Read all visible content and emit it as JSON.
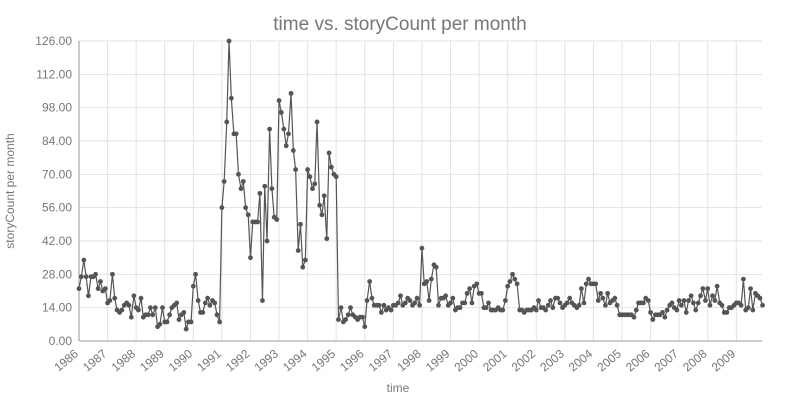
{
  "chart_data": {
    "type": "line",
    "title": "time vs. storyCount per month",
    "xlabel": "time",
    "ylabel": "storyCount per month",
    "ylim": [
      0,
      126
    ],
    "yticks": [
      "0.00",
      "14.00",
      "28.00",
      "42.00",
      "56.00",
      "70.00",
      "84.00",
      "98.00",
      "112.00",
      "126.00"
    ],
    "xlim": [
      1986.0,
      2009.9
    ],
    "xticks": [
      "1986",
      "1987",
      "1988",
      "1989",
      "1990",
      "1991",
      "1992",
      "1993",
      "1994",
      "1995",
      "1996",
      "1997",
      "1998",
      "1999",
      "2000",
      "2001",
      "2002",
      "2003",
      "2004",
      "2005",
      "2006",
      "2007",
      "2008",
      "2009"
    ],
    "grid": true,
    "color": "#555555",
    "series": [
      {
        "name": "storyCount per month",
        "x": [
          1986.0,
          1986.08,
          1986.17,
          1986.25,
          1986.33,
          1986.42,
          1986.5,
          1986.58,
          1986.67,
          1986.75,
          1986.83,
          1986.92,
          1987.0,
          1987.08,
          1987.17,
          1987.25,
          1987.33,
          1987.42,
          1987.5,
          1987.58,
          1987.67,
          1987.75,
          1987.83,
          1987.92,
          1988.0,
          1988.08,
          1988.17,
          1988.25,
          1988.33,
          1988.42,
          1988.5,
          1988.58,
          1988.67,
          1988.75,
          1988.83,
          1988.92,
          1989.0,
          1989.08,
          1989.17,
          1989.25,
          1989.33,
          1989.42,
          1989.5,
          1989.58,
          1989.67,
          1989.75,
          1989.83,
          1989.92,
          1990.0,
          1990.08,
          1990.17,
          1990.25,
          1990.33,
          1990.42,
          1990.5,
          1990.58,
          1990.67,
          1990.75,
          1990.83,
          1990.92,
          1991.0,
          1991.08,
          1991.17,
          1991.25,
          1991.33,
          1991.42,
          1991.5,
          1991.58,
          1991.67,
          1991.75,
          1991.83,
          1991.92,
          1992.0,
          1992.08,
          1992.17,
          1992.25,
          1992.33,
          1992.42,
          1992.5,
          1992.58,
          1992.67,
          1992.75,
          1992.83,
          1992.92,
          1993.0,
          1993.08,
          1993.17,
          1993.25,
          1993.33,
          1993.42,
          1993.5,
          1993.58,
          1993.67,
          1993.75,
          1993.83,
          1993.92,
          1994.0,
          1994.08,
          1994.17,
          1994.25,
          1994.33,
          1994.42,
          1994.5,
          1994.58,
          1994.67,
          1994.75,
          1994.83,
          1994.92,
          1995.0,
          1995.08,
          1995.17,
          1995.25,
          1995.33,
          1995.42,
          1995.5,
          1995.58,
          1995.67,
          1995.75,
          1995.83,
          1995.92,
          1996.0,
          1996.08,
          1996.17,
          1996.25,
          1996.33,
          1996.42,
          1996.5,
          1996.58,
          1996.67,
          1996.75,
          1996.83,
          1996.92,
          1997.0,
          1997.08,
          1997.17,
          1997.25,
          1997.33,
          1997.42,
          1997.5,
          1997.58,
          1997.67,
          1997.75,
          1997.83,
          1997.92,
          1998.0,
          1998.08,
          1998.17,
          1998.25,
          1998.33,
          1998.42,
          1998.5,
          1998.58,
          1998.67,
          1998.75,
          1998.83,
          1998.92,
          1999.0,
          1999.08,
          1999.17,
          1999.25,
          1999.33,
          1999.42,
          1999.5,
          1999.58,
          1999.67,
          1999.75,
          1999.83,
          1999.92,
          2000.0,
          2000.08,
          2000.17,
          2000.25,
          2000.33,
          2000.42,
          2000.5,
          2000.58,
          2000.67,
          2000.75,
          2000.83,
          2000.92,
          2001.0,
          2001.08,
          2001.17,
          2001.25,
          2001.33,
          2001.42,
          2001.5,
          2001.58,
          2001.67,
          2001.75,
          2001.83,
          2001.92,
          2002.0,
          2002.08,
          2002.17,
          2002.25,
          2002.33,
          2002.42,
          2002.5,
          2002.58,
          2002.67,
          2002.75,
          2002.83,
          2002.92,
          2003.0,
          2003.08,
          2003.17,
          2003.25,
          2003.33,
          2003.42,
          2003.5,
          2003.58,
          2003.67,
          2003.75,
          2003.83,
          2003.92,
          2004.0,
          2004.08,
          2004.17,
          2004.25,
          2004.33,
          2004.42,
          2004.5,
          2004.58,
          2004.67,
          2004.75,
          2004.83,
          2004.92,
          2005.0,
          2005.08,
          2005.17,
          2005.25,
          2005.33,
          2005.42,
          2005.5,
          2005.58,
          2005.67,
          2005.75,
          2005.83,
          2005.92,
          2006.0,
          2006.08,
          2006.17,
          2006.25,
          2006.33,
          2006.42,
          2006.5,
          2006.58,
          2006.67,
          2006.75,
          2006.83,
          2006.92,
          2007.0,
          2007.08,
          2007.17,
          2007.25,
          2007.33,
          2007.42,
          2007.5,
          2007.58,
          2007.67,
          2007.75,
          2007.83,
          2007.92,
          2008.0,
          2008.08,
          2008.17,
          2008.25,
          2008.33,
          2008.42,
          2008.5,
          2008.58,
          2008.67,
          2008.75,
          2008.83,
          2008.92,
          2009.0,
          2009.08,
          2009.17,
          2009.25,
          2009.33,
          2009.42,
          2009.5,
          2009.58,
          2009.67,
          2009.75,
          2009.83,
          2009.92
        ],
        "values": [
          22,
          27,
          34,
          27,
          19,
          27,
          27,
          28,
          22,
          25,
          21,
          22,
          16,
          17,
          28,
          18,
          13,
          12,
          13,
          15,
          16,
          15,
          10,
          19,
          14,
          13,
          18,
          10,
          11,
          11,
          14,
          11,
          14,
          6,
          7,
          14,
          8,
          8,
          11,
          14,
          15,
          16,
          9,
          11,
          12,
          5,
          8,
          8,
          23,
          28,
          17,
          12,
          12,
          16,
          18,
          15,
          17,
          16,
          11,
          8,
          56,
          67,
          92,
          126,
          102,
          87,
          87,
          70,
          64,
          67,
          56,
          53,
          35,
          50,
          50,
          50,
          62,
          17,
          65,
          42,
          89,
          64,
          52,
          51,
          101,
          96,
          89,
          82,
          87,
          104,
          80,
          72,
          38,
          49,
          31,
          34,
          72,
          69,
          64,
          66,
          92,
          57,
          53,
          61,
          43,
          79,
          73,
          70,
          69,
          9,
          14,
          8,
          9,
          11,
          14,
          11,
          10,
          9,
          10,
          10,
          6,
          17,
          25,
          18,
          15,
          15,
          15,
          12,
          15,
          13,
          14,
          13,
          15,
          15,
          16,
          19,
          15,
          16,
          18,
          17,
          15,
          16,
          18,
          15,
          39,
          24,
          25,
          17,
          26,
          32,
          31,
          15,
          18,
          18,
          19,
          15,
          16,
          18,
          13,
          14,
          14,
          16,
          16,
          20,
          22,
          16,
          23,
          24,
          20,
          20,
          14,
          14,
          16,
          13,
          13,
          13,
          14,
          13,
          13,
          17,
          23,
          25,
          28,
          26,
          24,
          13,
          13,
          12,
          13,
          13,
          13,
          14,
          13,
          17,
          14,
          14,
          13,
          15,
          17,
          14,
          18,
          18,
          16,
          14,
          15,
          16,
          18,
          16,
          15,
          14,
          15,
          22,
          16,
          24,
          26,
          24,
          24,
          24,
          17,
          20,
          18,
          15,
          20,
          16,
          17,
          18,
          15,
          11,
          11,
          11,
          11,
          11,
          11,
          10,
          13,
          16,
          16,
          16,
          18,
          17,
          12,
          9,
          11,
          11,
          11,
          12,
          10,
          13,
          15,
          16,
          14,
          13,
          17,
          15,
          17,
          12,
          17,
          19,
          16,
          13,
          16,
          19,
          22,
          17,
          22,
          15,
          19,
          17,
          23,
          16,
          15,
          12,
          12,
          14,
          14,
          15,
          16,
          16,
          15,
          26,
          13,
          14,
          22,
          13,
          20,
          19,
          18,
          15
        ]
      }
    ]
  }
}
